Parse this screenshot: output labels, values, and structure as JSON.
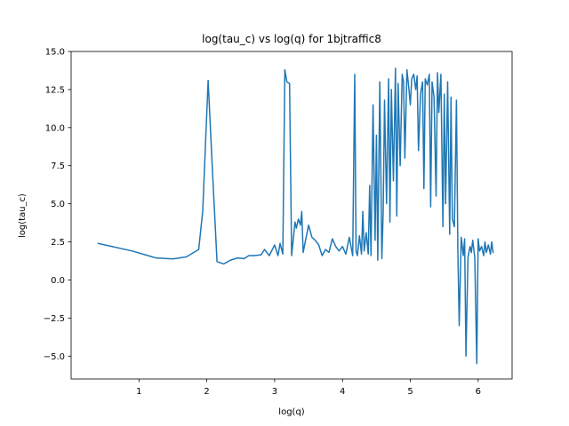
{
  "chart_data": {
    "type": "line",
    "title": "log(tau_c) vs log(q) for 1bjtraffic8",
    "xlabel": "log(q)",
    "ylabel": "log(tau_c)",
    "xlim": [
      0.0,
      6.5
    ],
    "ylim": [
      -6.5,
      15.0
    ],
    "grid": false,
    "legend": "none",
    "xticks": [
      {
        "value": 1,
        "label": "1"
      },
      {
        "value": 2,
        "label": "2"
      },
      {
        "value": 3,
        "label": "3"
      },
      {
        "value": 4,
        "label": "4"
      },
      {
        "value": 5,
        "label": "5"
      },
      {
        "value": 6,
        "label": "6"
      }
    ],
    "yticks": [
      {
        "value": -5.0,
        "label": "−5.0"
      },
      {
        "value": -2.5,
        "label": "−2.5"
      },
      {
        "value": 0.0,
        "label": "0.0"
      },
      {
        "value": 2.5,
        "label": "2.5"
      },
      {
        "value": 5.0,
        "label": "5.0"
      },
      {
        "value": 7.5,
        "label": "7.5"
      },
      {
        "value": 10.0,
        "label": "10.0"
      },
      {
        "value": 12.5,
        "label": "12.5"
      },
      {
        "value": 15.0,
        "label": "15.0"
      }
    ],
    "series": [
      {
        "color": "#1f77b4",
        "x": [
          0.4,
          0.9,
          1.25,
          1.5,
          1.7,
          1.88,
          1.94,
          2.02,
          2.08,
          2.15,
          2.25,
          2.35,
          2.45,
          2.55,
          2.62,
          2.7,
          2.8,
          2.85,
          2.92,
          3.0,
          3.05,
          3.08,
          3.12,
          3.15,
          3.18,
          3.22,
          3.25,
          3.3,
          3.32,
          3.35,
          3.38,
          3.4,
          3.42,
          3.45,
          3.5,
          3.55,
          3.6,
          3.65,
          3.7,
          3.75,
          3.8,
          3.85,
          3.9,
          3.95,
          4.0,
          4.05,
          4.1,
          4.15,
          4.18,
          4.2,
          4.22,
          4.25,
          4.28,
          4.3,
          4.32,
          4.35,
          4.38,
          4.4,
          4.42,
          4.45,
          4.48,
          4.5,
          4.52,
          4.55,
          4.58,
          4.6,
          4.62,
          4.65,
          4.68,
          4.7,
          4.72,
          4.75,
          4.78,
          4.8,
          4.82,
          4.85,
          4.88,
          4.9,
          4.92,
          4.95,
          4.98,
          5.0,
          5.02,
          5.05,
          5.08,
          5.1,
          5.12,
          5.15,
          5.18,
          5.2,
          5.22,
          5.25,
          5.28,
          5.3,
          5.32,
          5.35,
          5.38,
          5.4,
          5.42,
          5.45,
          5.48,
          5.5,
          5.52,
          5.55,
          5.58,
          5.6,
          5.62,
          5.65,
          5.68,
          5.7,
          5.72,
          5.75,
          5.78,
          5.8,
          5.82,
          5.85,
          5.88,
          5.9,
          5.92,
          5.95,
          5.98,
          6.0,
          6.02,
          6.05,
          6.08,
          6.1,
          6.12,
          6.15,
          6.18,
          6.2,
          6.22
        ],
        "values": [
          2.4,
          1.9,
          1.45,
          1.38,
          1.52,
          2.0,
          4.5,
          13.1,
          7.5,
          1.2,
          1.05,
          1.3,
          1.45,
          1.4,
          1.6,
          1.6,
          1.65,
          2.0,
          1.6,
          2.3,
          1.6,
          2.4,
          1.7,
          13.8,
          13.0,
          12.9,
          1.6,
          3.8,
          3.4,
          4.0,
          3.6,
          4.5,
          1.8,
          2.5,
          3.6,
          2.8,
          2.6,
          2.3,
          1.6,
          2.0,
          1.8,
          2.7,
          2.2,
          1.9,
          2.2,
          1.7,
          2.8,
          1.6,
          13.5,
          1.9,
          1.6,
          2.9,
          1.7,
          4.5,
          1.9,
          3.1,
          1.7,
          6.2,
          1.6,
          11.5,
          2.6,
          9.5,
          1.3,
          13.0,
          1.4,
          4.5,
          11.8,
          5.0,
          13.2,
          3.8,
          12.5,
          6.5,
          13.9,
          4.2,
          12.9,
          7.5,
          13.5,
          13.0,
          8.0,
          13.8,
          12.5,
          11.5,
          13.2,
          13.5,
          12.5,
          13.4,
          8.5,
          12.2,
          13.0,
          6.0,
          13.2,
          12.8,
          13.5,
          4.8,
          13.0,
          12.0,
          5.5,
          13.6,
          11.0,
          13.5,
          3.5,
          12.2,
          5.0,
          13.0,
          3.0,
          12.0,
          4.0,
          3.5,
          11.8,
          1.8,
          -3.0,
          2.8,
          1.6,
          2.7,
          -5.0,
          1.5,
          2.2,
          1.8,
          2.6,
          1.5,
          -5.5,
          2.7,
          1.9,
          2.2,
          1.6,
          2.5,
          1.8,
          2.3,
          1.7,
          2.5,
          1.8
        ]
      }
    ]
  }
}
